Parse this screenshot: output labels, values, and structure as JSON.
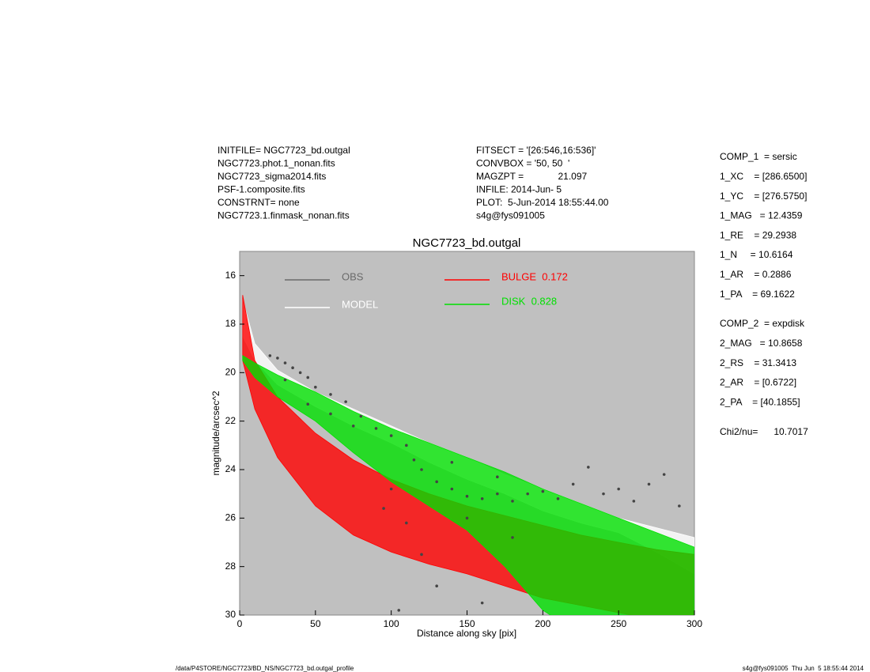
{
  "header": {
    "left": [
      "INITFILE= NGC7723_bd.outgal",
      "NGC7723.phot.1_nonan.fits",
      "NGC7723_sigma2014.fits",
      "PSF-1.composite.fits",
      "CONSTRNT= none",
      "NGC7723.1.finmask_nonan.fits"
    ],
    "middle": [
      "FITSECT = '[26:546,16:536]'",
      "CONVBOX = '50, 50  '",
      "MAGZPT =             21.097",
      "INFILE: 2014-Jun- 5",
      "PLOT:  5-Jun-2014 18:55:44.00",
      "s4g@fys091005"
    ]
  },
  "parameters": {
    "comp1": [
      "COMP_1  = sersic",
      "1_XC    = [286.6500]",
      "1_YC    = [276.5750]",
      "1_MAG   = 12.4359",
      "1_RE    = 29.2938",
      "1_N     = 10.6164",
      "1_AR    = 0.2886",
      "1_PA    = 69.1622"
    ],
    "comp2": [
      "COMP_2  = expdisk",
      "2_MAG   = 10.8658",
      "2_RS    = 31.3413",
      "2_AR    = [0.6722]",
      "2_PA    = [40.1855]"
    ],
    "chi2": "Chi2/nu=      10.7017"
  },
  "footer": {
    "left": "/data/P4STORE/NGC7723/BD_NS/NGC7723_bd.outgal_profile",
    "right": "s4g@fys091005  Thu Jun  5 18:55:44 2014"
  },
  "chart_data": {
    "type": "scatter",
    "title": "NGC7723_bd.outgal",
    "x_label": "Distance along sky [pix]",
    "y_label": "magnitude/arcsec^2",
    "xlim": [
      0,
      300
    ],
    "xticks": [
      0,
      50,
      100,
      150,
      200,
      250,
      300
    ],
    "ylim": [
      30,
      15
    ],
    "yticks": [
      16,
      18,
      20,
      22,
      24,
      26,
      28,
      30
    ],
    "background": "#c0c0c0",
    "series": [
      {
        "name": "OBS",
        "type": "scatter",
        "color": "#6a6a6a",
        "x": [
          20,
          25,
          30,
          35,
          40,
          45,
          30,
          50,
          60,
          70,
          80,
          90,
          100,
          110,
          115,
          120,
          130,
          140,
          150,
          160,
          170,
          180,
          190,
          200,
          210,
          220,
          230,
          240,
          250,
          260,
          270,
          280,
          290,
          110,
          120,
          130,
          105,
          160,
          180,
          140,
          170,
          150,
          100,
          95,
          45,
          60,
          75
        ],
        "values": [
          19.3,
          19.4,
          19.6,
          19.8,
          20.0,
          20.2,
          20.3,
          20.6,
          20.9,
          21.2,
          21.8,
          22.3,
          22.6,
          23.0,
          23.6,
          24.0,
          24.5,
          24.8,
          25.1,
          25.2,
          25.0,
          25.3,
          25.0,
          24.9,
          25.2,
          24.6,
          23.9,
          25.0,
          24.8,
          25.3,
          24.6,
          24.2,
          25.5,
          26.2,
          27.5,
          28.8,
          29.8,
          29.5,
          26.8,
          23.7,
          24.3,
          26.0,
          24.8,
          25.6,
          21.3,
          21.7,
          22.2
        ]
      },
      {
        "name": "MODEL",
        "type": "band",
        "color": "#ffffff",
        "x": [
          2,
          10,
          25,
          50,
          75,
          100,
          125,
          150,
          175,
          200,
          225,
          250,
          275,
          300
        ],
        "values": [
          17.0,
          18.8,
          19.9,
          20.8,
          21.5,
          22.2,
          22.9,
          23.5,
          24.2,
          24.8,
          25.4,
          26.0,
          26.4,
          26.8
        ],
        "values_faint": [
          18.5,
          19.5,
          20.5,
          21.4,
          22.2,
          22.9,
          23.7,
          24.4,
          25.0,
          25.7,
          26.2,
          26.6,
          27.4,
          28.3
        ]
      },
      {
        "name": "BULGE  0.172",
        "type": "band",
        "color": "#ff0000",
        "x": [
          2,
          10,
          25,
          50,
          75,
          100,
          125,
          150,
          175,
          200,
          225,
          250,
          275,
          300
        ],
        "values": [
          16.8,
          19.5,
          21.0,
          22.5,
          23.6,
          24.4,
          25.0,
          25.5,
          25.9,
          26.3,
          26.7,
          27.0,
          27.3,
          27.5
        ],
        "values_faint": [
          19.5,
          21.5,
          23.5,
          25.5,
          26.7,
          27.4,
          27.9,
          28.3,
          28.8,
          29.3,
          29.6,
          29.9,
          30.2,
          30.5
        ]
      },
      {
        "name": "DISK  0.828",
        "type": "band",
        "color": "#00e000",
        "x": [
          2,
          10,
          25,
          50,
          75,
          100,
          125,
          150,
          175,
          200,
          225,
          250,
          275,
          300
        ],
        "values": [
          19.3,
          19.6,
          20.1,
          20.8,
          21.6,
          22.3,
          22.9,
          23.5,
          24.1,
          24.8,
          25.4,
          26.0,
          26.6,
          27.2
        ],
        "values_faint": [
          19.5,
          20.2,
          21.0,
          22.0,
          23.3,
          24.5,
          25.5,
          26.5,
          28.0,
          29.8,
          30.8,
          31.5,
          32.0,
          32.5
        ]
      }
    ]
  }
}
